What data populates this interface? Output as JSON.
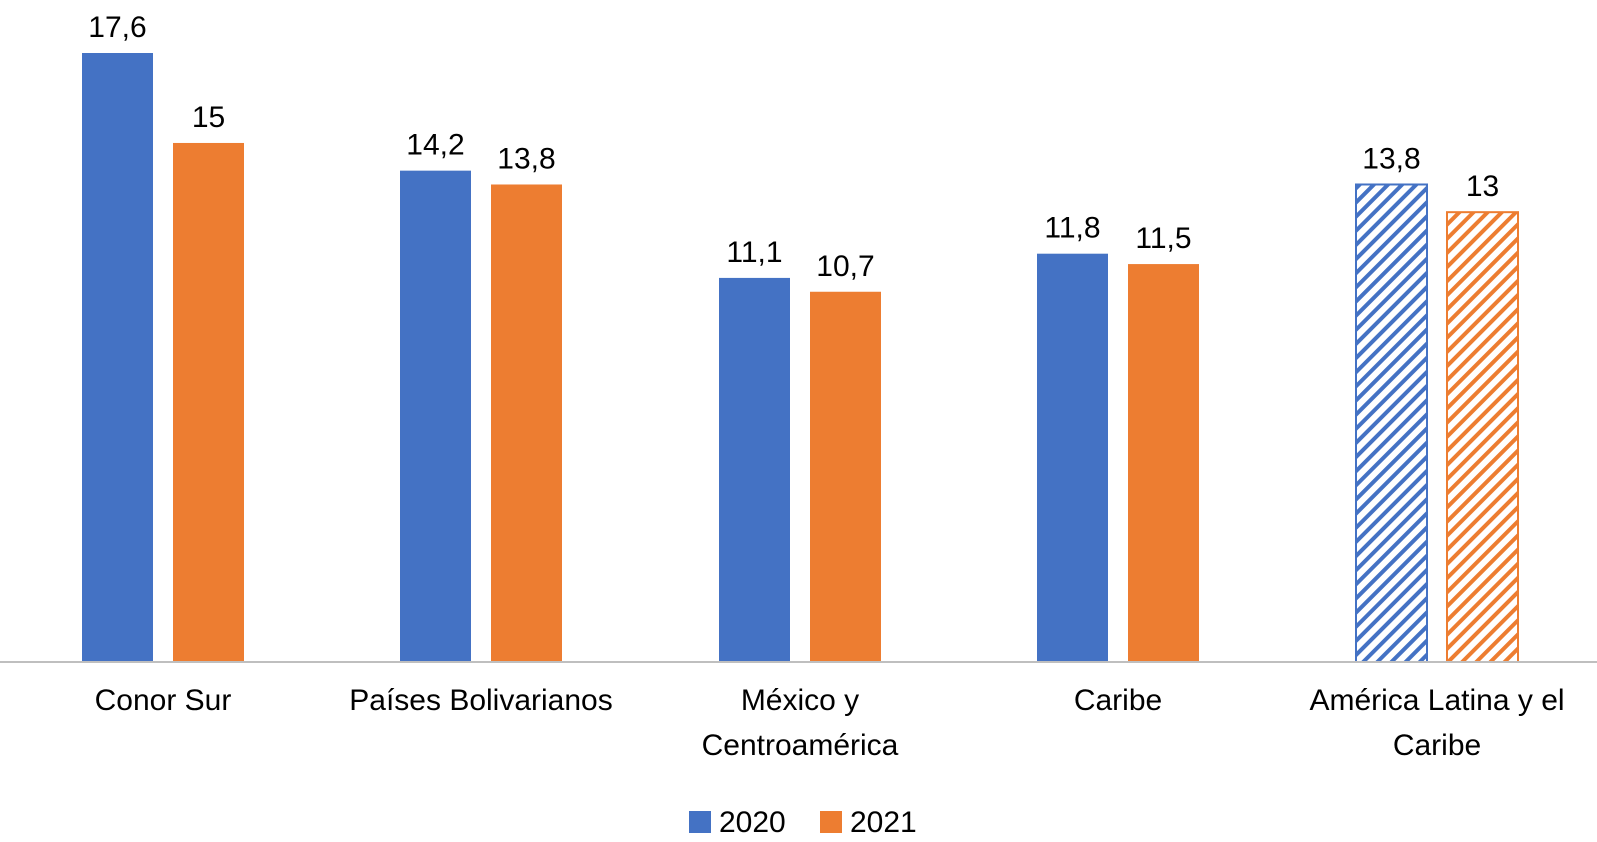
{
  "chart_data": {
    "type": "bar",
    "categories": [
      [
        "Conor Sur"
      ],
      [
        "Países Bolivarianos"
      ],
      [
        "México y",
        "Centroamérica"
      ],
      [
        "Caribe"
      ],
      [
        "América Latina y el",
        "Caribe"
      ]
    ],
    "series": [
      {
        "name": "2020",
        "color": "#4472C4",
        "values": [
          17.6,
          14.2,
          11.1,
          11.8,
          13.8
        ],
        "labels": [
          "17,6",
          "14,2",
          "11,1",
          "11,8",
          "13,8"
        ]
      },
      {
        "name": "2021",
        "color": "#ED7D31",
        "values": [
          15,
          13.8,
          10.7,
          11.5,
          13
        ],
        "labels": [
          "15",
          "13,8",
          "10,7",
          "11,5",
          "13"
        ]
      }
    ],
    "hatched_categories": [
      4
    ],
    "ylim": [
      0,
      17.6
    ],
    "legend_position": "bottom",
    "grid": false
  }
}
